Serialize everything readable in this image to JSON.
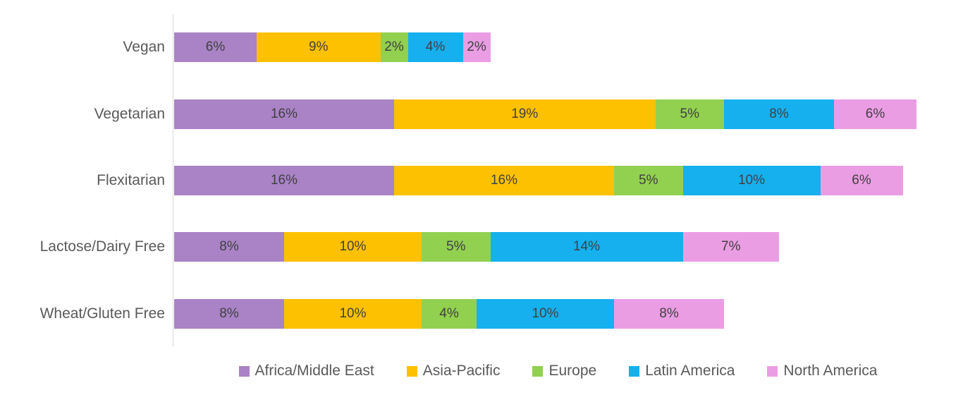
{
  "chart_data": {
    "type": "bar",
    "orientation": "horizontal",
    "stacked": true,
    "title": "",
    "xlabel": "",
    "ylabel": "",
    "value_suffix": "%",
    "legend_position": "bottom",
    "grid": false,
    "axis_line_color": "#d9d9d9",
    "category_label_color": "#595959",
    "data_label_color": "#404040",
    "categories": [
      "Vegan",
      "Vegetarian",
      "Flexitarian",
      "Lactose/Dairy Free",
      "Wheat/Gluten Free"
    ],
    "series": [
      {
        "name": "Africa/Middle East",
        "color": "#a983c6",
        "values": [
          6,
          16,
          16,
          8,
          8
        ]
      },
      {
        "name": "Asia-Pacific",
        "color": "#fec101",
        "values": [
          9,
          19,
          16,
          10,
          10
        ]
      },
      {
        "name": "Europe",
        "color": "#92d050",
        "values": [
          2,
          5,
          5,
          5,
          4
        ]
      },
      {
        "name": "Latin America",
        "color": "#16b0ef",
        "values": [
          4,
          8,
          10,
          14,
          10
        ]
      },
      {
        "name": "North America",
        "color": "#eb9de4",
        "values": [
          2,
          6,
          6,
          7,
          8
        ]
      }
    ]
  }
}
